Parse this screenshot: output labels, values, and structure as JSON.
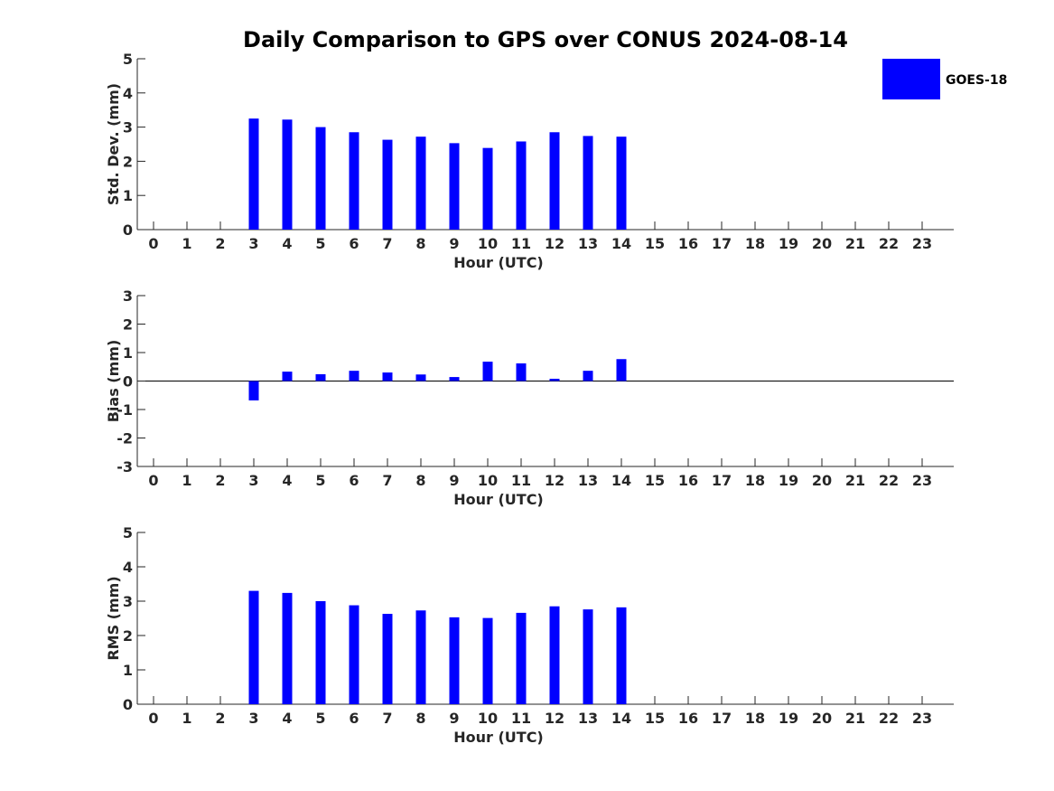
{
  "figure": {
    "title": "Daily Comparison to GPS over CONUS 2024-08-14",
    "legend": {
      "label": "GOES-18",
      "color": "#0000ff",
      "placement": "top-right"
    }
  },
  "chart_data": [
    {
      "type": "bar",
      "categories": [
        "0",
        "1",
        "2",
        "3",
        "4",
        "5",
        "6",
        "7",
        "8",
        "9",
        "10",
        "11",
        "12",
        "13",
        "14",
        "15",
        "16",
        "17",
        "18",
        "19",
        "20",
        "21",
        "22",
        "23"
      ],
      "series": [
        {
          "name": "GOES-18",
          "color": "#0000ff",
          "values": [
            null,
            null,
            null,
            3.25,
            3.22,
            3.0,
            2.85,
            2.63,
            2.72,
            2.53,
            2.39,
            2.58,
            2.85,
            2.74,
            2.72,
            null,
            null,
            null,
            null,
            null,
            null,
            null,
            null,
            null
          ]
        }
      ],
      "xlabel": "Hour (UTC)",
      "ylabel": "Std. Dev. (mm)",
      "ylim": [
        0,
        5
      ],
      "yticks": [
        "0",
        "1",
        "2",
        "3",
        "4",
        "5"
      ],
      "grid": false
    },
    {
      "type": "bar",
      "categories": [
        "0",
        "1",
        "2",
        "3",
        "4",
        "5",
        "6",
        "7",
        "8",
        "9",
        "10",
        "11",
        "12",
        "13",
        "14",
        "15",
        "16",
        "17",
        "18",
        "19",
        "20",
        "21",
        "22",
        "23"
      ],
      "series": [
        {
          "name": "GOES-18",
          "color": "#0000ff",
          "values": [
            null,
            null,
            null,
            -0.68,
            0.33,
            0.24,
            0.36,
            0.3,
            0.23,
            0.14,
            0.68,
            0.62,
            0.08,
            0.36,
            0.77,
            null,
            null,
            null,
            null,
            null,
            null,
            null,
            null,
            null
          ]
        }
      ],
      "xlabel": "Hour (UTC)",
      "ylabel": "Bias (mm)",
      "ylim": [
        -3,
        3
      ],
      "yticks": [
        "-3",
        "-2",
        "-1",
        "0",
        "1",
        "2",
        "3"
      ],
      "grid": false
    },
    {
      "type": "bar",
      "categories": [
        "0",
        "1",
        "2",
        "3",
        "4",
        "5",
        "6",
        "7",
        "8",
        "9",
        "10",
        "11",
        "12",
        "13",
        "14",
        "15",
        "16",
        "17",
        "18",
        "19",
        "20",
        "21",
        "22",
        "23"
      ],
      "series": [
        {
          "name": "GOES-18",
          "color": "#0000ff",
          "values": [
            null,
            null,
            null,
            3.3,
            3.24,
            3.0,
            2.88,
            2.63,
            2.73,
            2.53,
            2.51,
            2.66,
            2.85,
            2.76,
            2.82,
            null,
            null,
            null,
            null,
            null,
            null,
            null,
            null,
            null
          ]
        }
      ],
      "xlabel": "Hour (UTC)",
      "ylabel": "RMS (mm)",
      "ylim": [
        0,
        5
      ],
      "yticks": [
        "0",
        "1",
        "2",
        "3",
        "4",
        "5"
      ],
      "grid": false
    }
  ]
}
